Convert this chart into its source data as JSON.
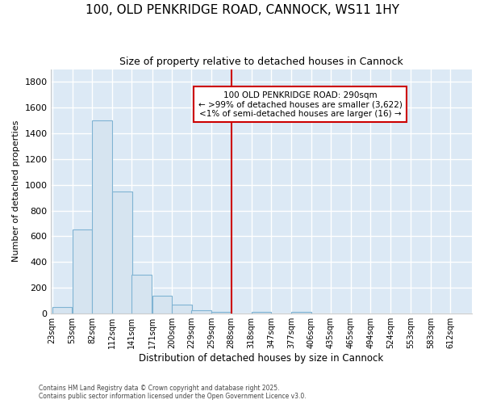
{
  "title1": "100, OLD PENKRIDGE ROAD, CANNOCK, WS11 1HY",
  "title2": "Size of property relative to detached houses in Cannock",
  "xlabel": "Distribution of detached houses by size in Cannock",
  "ylabel": "Number of detached properties",
  "bins": [
    23,
    53,
    82,
    112,
    141,
    171,
    200,
    229,
    259,
    288,
    318,
    347,
    377,
    406,
    435,
    465,
    494,
    524,
    553,
    583,
    612
  ],
  "values": [
    50,
    650,
    1500,
    950,
    300,
    140,
    70,
    25,
    15,
    0,
    15,
    0,
    15,
    0,
    0,
    0,
    0,
    0,
    0,
    0
  ],
  "bar_color": "#d6e4f0",
  "bar_edge_color": "#7fb3d3",
  "vline_x": 288,
  "vline_color": "#cc0000",
  "annotation_text": "100 OLD PENKRIDGE ROAD: 290sqm\n← >99% of detached houses are smaller (3,622)\n<1% of semi-detached houses are larger (16) →",
  "annotation_box_color": "#ffffff",
  "annotation_box_edge": "#cc0000",
  "ylim": [
    0,
    1900
  ],
  "yticks": [
    0,
    200,
    400,
    600,
    800,
    1000,
    1200,
    1400,
    1600,
    1800
  ],
  "bg_color": "#dce9f5",
  "grid_color": "#ffffff",
  "fig_bg_color": "#ffffff",
  "footer1": "Contains HM Land Registry data © Crown copyright and database right 2025.",
  "footer2": "Contains public sector information licensed under the Open Government Licence v3.0."
}
